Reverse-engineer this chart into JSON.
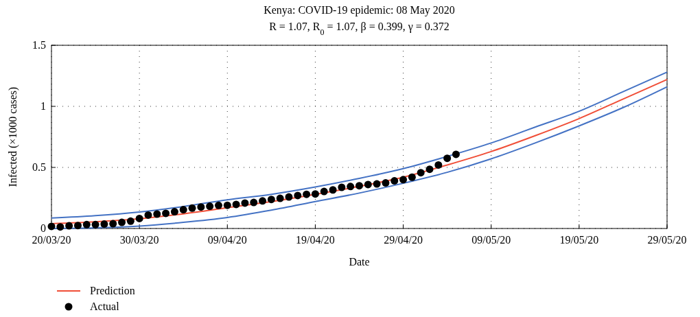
{
  "chart_data": {
    "type": "scatter",
    "title": "Kenya: COVID-19 epidemic: 08 May 2020",
    "subtitle": "R = 1.07, R$_{0}$ = 1.07, β = 0.399, γ = 0.372",
    "xlabel": "Date",
    "ylabel": "Infected (×1000 cases)",
    "xlim": [
      "2020-03-20",
      "2020-05-29"
    ],
    "xticks": [
      {
        "value": "2020-03-20",
        "label": "20/03/20"
      },
      {
        "value": "2020-03-30",
        "label": "30/03/20"
      },
      {
        "value": "2020-04-09",
        "label": "09/04/20"
      },
      {
        "value": "2020-04-19",
        "label": "19/04/20"
      },
      {
        "value": "2020-04-29",
        "label": "29/04/20"
      },
      {
        "value": "2020-05-09",
        "label": "09/05/20"
      },
      {
        "value": "2020-05-19",
        "label": "19/05/20"
      },
      {
        "value": "2020-05-29",
        "label": "29/05/20"
      }
    ],
    "ylim": [
      0,
      1.5
    ],
    "yticks": [
      0,
      0.5,
      1,
      1.5
    ],
    "grid": true,
    "legend": "bottom left",
    "series": [
      {
        "type": "line",
        "color": "#4472c4",
        "x": [
          "2020-03-20",
          "2020-03-25",
          "2020-03-30",
          "2020-04-04",
          "2020-04-09",
          "2020-04-14",
          "2020-04-19",
          "2020-04-24",
          "2020-04-29",
          "2020-05-04",
          "2020-05-09",
          "2020-05-14",
          "2020-05-19",
          "2020-05-24",
          "2020-05-29"
        ],
        "values": [
          0.085,
          0.105,
          0.135,
          0.18,
          0.235,
          0.28,
          0.34,
          0.41,
          0.49,
          0.59,
          0.7,
          0.83,
          0.96,
          1.12,
          1.28
        ]
      },
      {
        "type": "line",
        "color": "#4472c4",
        "x": [
          "2020-03-20",
          "2020-03-25",
          "2020-03-30",
          "2020-04-04",
          "2020-04-09",
          "2020-04-14",
          "2020-04-19",
          "2020-04-24",
          "2020-04-29",
          "2020-05-04",
          "2020-05-09",
          "2020-05-14",
          "2020-05-19",
          "2020-05-24",
          "2020-05-29"
        ],
        "values": [
          0,
          0.005,
          0.02,
          0.05,
          0.09,
          0.15,
          0.22,
          0.29,
          0.37,
          0.46,
          0.57,
          0.7,
          0.84,
          0.99,
          1.16
        ]
      },
      {
        "type": "line",
        "name": "Prediction",
        "color": "#f04e37",
        "x": [
          "2020-03-20",
          "2020-03-25",
          "2020-03-30",
          "2020-04-04",
          "2020-04-09",
          "2020-04-14",
          "2020-04-19",
          "2020-04-24",
          "2020-04-29",
          "2020-05-04",
          "2020-05-09",
          "2020-05-14",
          "2020-05-19",
          "2020-05-24",
          "2020-05-29"
        ],
        "values": [
          0.04,
          0.055,
          0.08,
          0.12,
          0.17,
          0.22,
          0.28,
          0.345,
          0.42,
          0.52,
          0.63,
          0.76,
          0.9,
          1.06,
          1.22
        ]
      },
      {
        "name": "Actual",
        "color": "#000000",
        "marker": "circle",
        "x": [
          "2020-03-20",
          "2020-03-21",
          "2020-03-22",
          "2020-03-23",
          "2020-03-24",
          "2020-03-25",
          "2020-03-26",
          "2020-03-27",
          "2020-03-28",
          "2020-03-29",
          "2020-03-30",
          "2020-03-31",
          "2020-04-01",
          "2020-04-02",
          "2020-04-03",
          "2020-04-04",
          "2020-04-05",
          "2020-04-06",
          "2020-04-07",
          "2020-04-08",
          "2020-04-09",
          "2020-04-10",
          "2020-04-11",
          "2020-04-12",
          "2020-04-13",
          "2020-04-14",
          "2020-04-15",
          "2020-04-16",
          "2020-04-17",
          "2020-04-18",
          "2020-04-19",
          "2020-04-20",
          "2020-04-21",
          "2020-04-22",
          "2020-04-23",
          "2020-04-24",
          "2020-04-25",
          "2020-04-26",
          "2020-04-27",
          "2020-04-28",
          "2020-04-29",
          "2020-04-30",
          "2020-05-01",
          "2020-05-02",
          "2020-05-03",
          "2020-05-04",
          "2020-05-05"
        ],
        "values": [
          0.017,
          0.013,
          0.022,
          0.024,
          0.032,
          0.032,
          0.036,
          0.039,
          0.05,
          0.06,
          0.082,
          0.11,
          0.118,
          0.124,
          0.137,
          0.154,
          0.167,
          0.176,
          0.182,
          0.189,
          0.19,
          0.197,
          0.208,
          0.213,
          0.226,
          0.238,
          0.247,
          0.258,
          0.27,
          0.28,
          0.283,
          0.303,
          0.316,
          0.337,
          0.344,
          0.35,
          0.36,
          0.365,
          0.373,
          0.39,
          0.4,
          0.42,
          0.457,
          0.485,
          0.52,
          0.575,
          0.607
        ]
      }
    ]
  }
}
